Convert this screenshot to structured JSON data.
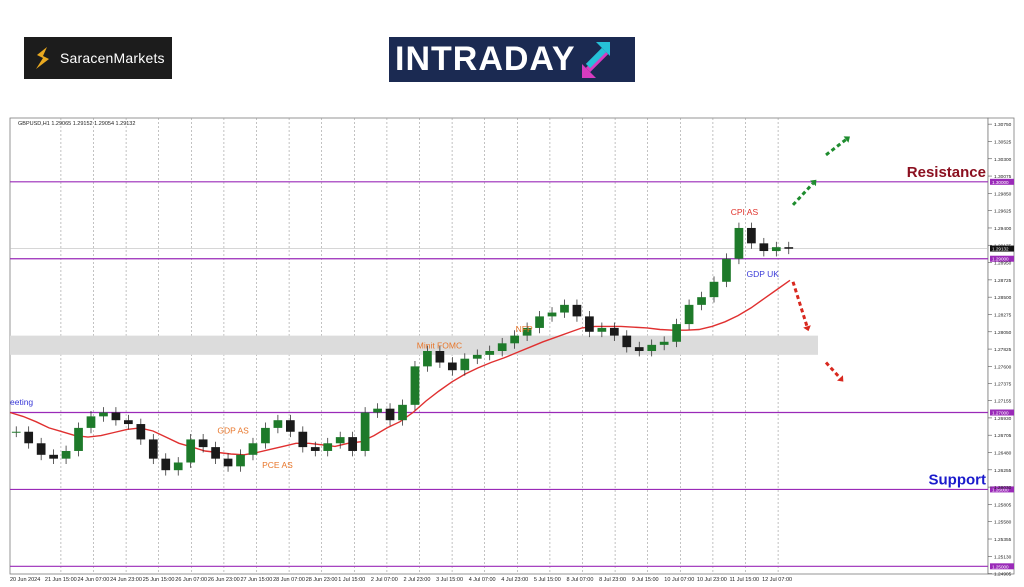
{
  "logos": {
    "saracen": "SaracenMarkets",
    "intraday": "INTRADAY"
  },
  "chart_data": {
    "type": "line",
    "symbol_header": "GBPUSD,H1  1.29065 1.29152 1.29054 1.29132",
    "x_ticks": [
      "20 Jun 2024",
      "21 Jun 15:00",
      "24 Jun 07:00",
      "24 Jun 23:00",
      "25 Jun 15:00",
      "26 Jun 07:00",
      "26 Jun 23:00",
      "27 Jun 15:00",
      "28 Jun 07:00",
      "28 Jun 23:00",
      "1 Jul 15:00",
      "2 Jul 07:00",
      "2 Jul 23:00",
      "3 Jul 15:00",
      "4 Jul 07:00",
      "4 Jul 23:00",
      "5 Jul 15:00",
      "8 Jul 07:00",
      "8 Jul 23:00",
      "9 Jul 15:00",
      "10 Jul 07:00",
      "10 Jul 23:00",
      "11 Jul 15:00",
      "12 Jul 07:00"
    ],
    "y_ticks": [
      1.3075,
      1.30525,
      1.303,
      1.30075,
      1.2985,
      1.29625,
      1.294,
      1.29175,
      1.2895,
      1.28725,
      1.285,
      1.28275,
      1.2805,
      1.27825,
      1.276,
      1.27375,
      1.27155,
      1.2693,
      1.26705,
      1.2648,
      1.26255,
      1.2603,
      1.25805,
      1.2558,
      1.25355,
      1.2513,
      1.24905
    ],
    "ylim": [
      1.249,
      1.3083
    ],
    "current_price_label": "1.29132",
    "levels": [
      {
        "value": 1.3,
        "label": "1.30000",
        "name": "Resistance"
      },
      {
        "value": 1.29,
        "label": "1.29000",
        "name": ""
      },
      {
        "value": 1.27,
        "label": "1.27000",
        "name": ""
      },
      {
        "value": 1.26,
        "label": "1.26000",
        "name": "Support"
      },
      {
        "value": 1.25,
        "label": "1.25000",
        "name": ""
      }
    ],
    "zone": {
      "from": 1.2775,
      "to": 1.28
    },
    "price_series": [
      1.2675,
      1.266,
      1.2645,
      1.264,
      1.265,
      1.268,
      1.2695,
      1.27,
      1.269,
      1.2685,
      1.2665,
      1.264,
      1.2625,
      1.2635,
      1.2665,
      1.2655,
      1.264,
      1.263,
      1.2645,
      1.266,
      1.268,
      1.269,
      1.2675,
      1.2655,
      1.265,
      1.266,
      1.2668,
      1.265,
      1.27,
      1.2705,
      1.269,
      1.271,
      1.276,
      1.278,
      1.2765,
      1.2755,
      1.277,
      1.2775,
      1.278,
      1.279,
      1.28,
      1.281,
      1.2825,
      1.283,
      1.284,
      1.2825,
      1.2805,
      1.281,
      1.28,
      1.2785,
      1.278,
      1.2788,
      1.2792,
      1.2815,
      1.284,
      1.285,
      1.287,
      1.29,
      1.294,
      1.292,
      1.291,
      1.2915,
      1.2913
    ],
    "ma_series": [
      1.27,
      1.2695,
      1.2688,
      1.268,
      1.2675,
      1.267,
      1.2668,
      1.267,
      1.2674,
      1.2678,
      1.268,
      1.2676,
      1.2668,
      1.266,
      1.2655,
      1.265,
      1.2648,
      1.2646,
      1.2645,
      1.2648,
      1.2652,
      1.2656,
      1.266,
      1.266,
      1.2658,
      1.2656,
      1.266,
      1.2662,
      1.267,
      1.268,
      1.2688,
      1.27,
      1.2715,
      1.2728,
      1.274,
      1.275,
      1.2758,
      1.2765,
      1.2771,
      1.2778,
      1.2785,
      1.2792,
      1.2798,
      1.2804,
      1.281,
      1.2812,
      1.2812,
      1.2812,
      1.2811,
      1.281,
      1.2808,
      1.2807,
      1.2807,
      1.2808,
      1.2812,
      1.2818,
      1.2826,
      1.2836,
      1.2848,
      1.286,
      1.2872
    ],
    "annotations": [
      {
        "text": "CPI AS",
        "color": "#e0312a",
        "value": 1.2957,
        "at": 0.936
      },
      {
        "text": "GDP UK",
        "color": "#3a3ad8",
        "value": 1.2876,
        "at": 0.956
      },
      {
        "text": "NFP",
        "color": "#e8762a",
        "value": 1.2805,
        "at": 0.662
      },
      {
        "text": "Minit FOMC",
        "color": "#e8762a",
        "value": 1.2783,
        "at": 0.536
      },
      {
        "text": "eeting",
        "color": "#3a3ad8",
        "value": 1.271,
        "at": 0.0
      },
      {
        "text": "GDP AS",
        "color": "#e8762a",
        "value": 1.2673,
        "at": 0.282
      },
      {
        "text": "PCE AS",
        "color": "#e8762a",
        "value": 1.2628,
        "at": 0.339
      }
    ],
    "arrows": [
      {
        "dir": "up",
        "color": "#1e8c2e",
        "from": 1.297,
        "to": 1.2998
      },
      {
        "dir": "up",
        "color": "#1e8c2e",
        "from": 1.3035,
        "to": 1.3055
      },
      {
        "dir": "down",
        "color": "#d8281e",
        "from": 1.287,
        "to": 1.2812
      },
      {
        "dir": "down",
        "color": "#d8281e",
        "from": 1.2765,
        "to": 1.2745
      }
    ],
    "colors": {
      "candle": "#1e7a2a",
      "ma": "#e03030",
      "level": "#9a2ab8",
      "resistance": "#8b1020",
      "support": "#1a1acc",
      "zone": "#dcdcdc"
    }
  }
}
